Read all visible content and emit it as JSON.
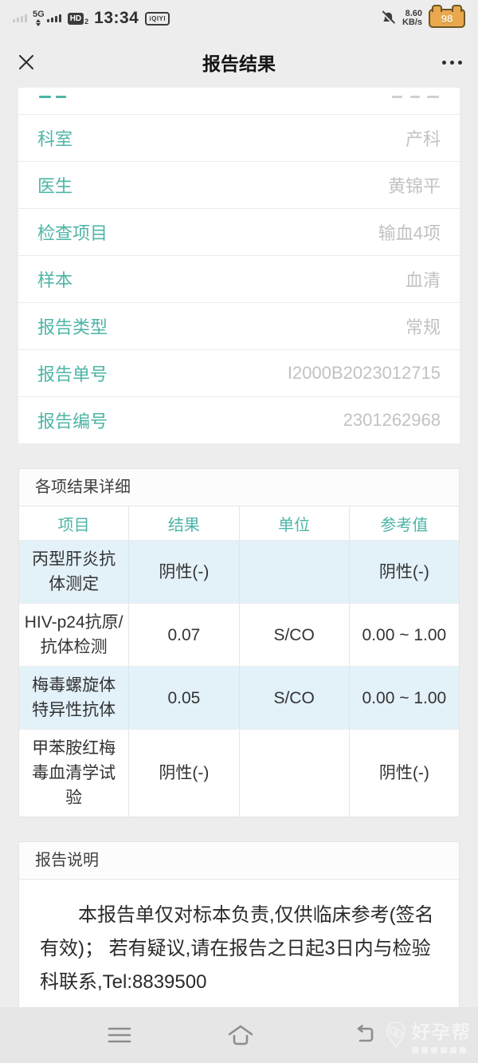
{
  "status_bar": {
    "network": "5G",
    "volte_badge": "HD",
    "volte_sim": "2",
    "time": "13:34",
    "app_badge": "iQIYI",
    "speed_value": "8.60",
    "speed_unit": "KB/s",
    "battery_level": "98"
  },
  "header": {
    "title": "报告结果"
  },
  "info_card": {
    "rows": [
      {
        "label": "科室",
        "value": "产科"
      },
      {
        "label": "医生",
        "value": "黄锦平"
      },
      {
        "label": "检查项目",
        "value": "输血4项"
      },
      {
        "label": "样本",
        "value": "血清"
      },
      {
        "label": "报告类型",
        "value": "常规"
      },
      {
        "label": "报告单号",
        "value": "I2000B2023012715"
      },
      {
        "label": "报告编号",
        "value": "2301262968"
      }
    ]
  },
  "results": {
    "section_title": "各项结果详细",
    "table": {
      "headers": [
        "项目",
        "结果",
        "单位",
        "参考值"
      ],
      "rows": [
        {
          "item": "丙型肝炎抗体测定",
          "result": "阴性(-)",
          "unit": "",
          "ref": "阴性(-)",
          "highlight": true
        },
        {
          "item": "HIV-p24抗原/抗体检测",
          "result": "0.07",
          "unit": "S/CO",
          "ref": "0.00 ~ 1.00",
          "highlight": false
        },
        {
          "item": "梅毒螺旋体特异性抗体",
          "result": "0.05",
          "unit": "S/CO",
          "ref": "0.00 ~ 1.00",
          "highlight": true
        },
        {
          "item": "甲苯胺红梅毒血清学试验",
          "result": "阴性(-)",
          "unit": "",
          "ref": "阴性(-)",
          "highlight": false
        }
      ]
    }
  },
  "notes": {
    "section_title": "报告说明",
    "body": "本报告单仅对标本负责,仅供临床参考(签名有效)； 若有疑议,请在报告之日起3日内与检验科联系,Tel:8839500"
  },
  "watermark": {
    "brand": "好孕帮"
  },
  "colors": {
    "accent_teal": "#4db5a6",
    "row_highlight": "#e3f1f9",
    "battery_fill": "#e9a84e",
    "page_background": "#ededed"
  }
}
